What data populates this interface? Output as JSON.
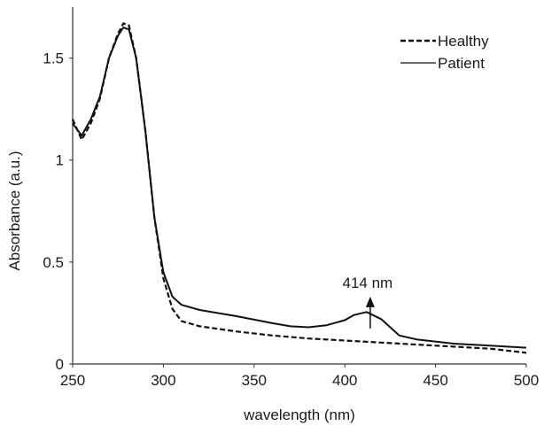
{
  "chart_data": {
    "type": "line",
    "title": "",
    "xlabel": "wavelength (nm)",
    "ylabel": "Absorbance (a.u.)",
    "xlim": [
      250,
      500
    ],
    "ylim": [
      0,
      1.75
    ],
    "x_ticks": [
      250,
      300,
      350,
      400,
      450,
      500
    ],
    "y_ticks": [
      0,
      0.5,
      1,
      1.5
    ],
    "x_tick_labels": [
      "250",
      "300",
      "350",
      "400",
      "450",
      "500"
    ],
    "y_tick_labels": [
      "0",
      "0.5",
      "1",
      "1.5"
    ],
    "grid": false,
    "legend_position": "top-right",
    "series": [
      {
        "name": "Healthy",
        "style": "dashed",
        "color": "#111111",
        "points": [
          [
            250,
            1.2
          ],
          [
            255,
            1.1
          ],
          [
            260,
            1.18
          ],
          [
            265,
            1.3
          ],
          [
            270,
            1.5
          ],
          [
            275,
            1.62
          ],
          [
            278,
            1.67
          ],
          [
            281,
            1.66
          ],
          [
            285,
            1.5
          ],
          [
            290,
            1.15
          ],
          [
            295,
            0.72
          ],
          [
            300,
            0.42
          ],
          [
            305,
            0.27
          ],
          [
            310,
            0.21
          ],
          [
            320,
            0.185
          ],
          [
            340,
            0.16
          ],
          [
            360,
            0.14
          ],
          [
            380,
            0.125
          ],
          [
            400,
            0.115
          ],
          [
            420,
            0.105
          ],
          [
            440,
            0.095
          ],
          [
            460,
            0.085
          ],
          [
            480,
            0.075
          ],
          [
            500,
            0.055
          ]
        ]
      },
      {
        "name": "Patient",
        "style": "solid",
        "color": "#111111",
        "points": [
          [
            250,
            1.18
          ],
          [
            255,
            1.12
          ],
          [
            260,
            1.2
          ],
          [
            265,
            1.31
          ],
          [
            270,
            1.5
          ],
          [
            275,
            1.61
          ],
          [
            278,
            1.65
          ],
          [
            281,
            1.64
          ],
          [
            285,
            1.5
          ],
          [
            290,
            1.15
          ],
          [
            295,
            0.72
          ],
          [
            300,
            0.45
          ],
          [
            305,
            0.33
          ],
          [
            310,
            0.29
          ],
          [
            320,
            0.265
          ],
          [
            340,
            0.235
          ],
          [
            360,
            0.2
          ],
          [
            370,
            0.185
          ],
          [
            380,
            0.18
          ],
          [
            390,
            0.19
          ],
          [
            400,
            0.215
          ],
          [
            405,
            0.24
          ],
          [
            412,
            0.255
          ],
          [
            420,
            0.22
          ],
          [
            430,
            0.14
          ],
          [
            440,
            0.12
          ],
          [
            460,
            0.1
          ],
          [
            480,
            0.09
          ],
          [
            500,
            0.08
          ]
        ]
      }
    ],
    "annotations": [
      {
        "text": "414 nm",
        "x": 414,
        "y": 0.27,
        "arrow": true
      }
    ]
  }
}
